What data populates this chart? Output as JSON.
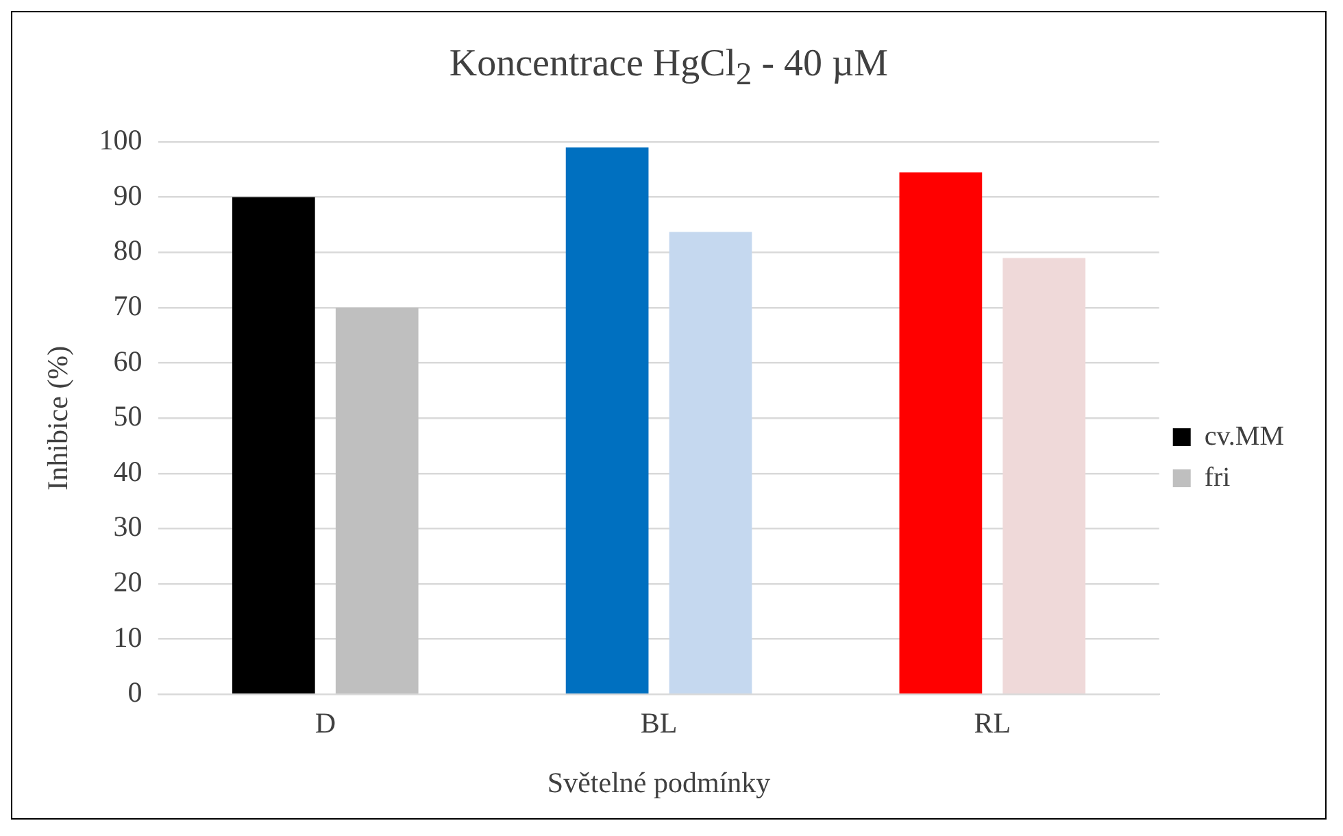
{
  "chart_data": {
    "type": "bar",
    "title": "Koncentrace HgCl$_{2}$ - 40 µM",
    "xlabel": "Světelné podmínky",
    "ylabel": "Inhibice (%)",
    "categories": [
      "D",
      "BL",
      "RL"
    ],
    "series": [
      {
        "name": "cv.MM",
        "color": "#000000",
        "colors": [
          "#000000",
          "#0070c0",
          "#ff0000"
        ],
        "values": [
          90,
          99,
          94.5
        ]
      },
      {
        "name": "fri",
        "color": "#bfbfbf",
        "colors": [
          "#bfbfbf",
          "#c5d8ef",
          "#efd9d9"
        ],
        "values": [
          70,
          83.7,
          79
        ]
      }
    ],
    "ylim": [
      0,
      100
    ],
    "yticks": [
      0,
      10,
      20,
      30,
      40,
      50,
      60,
      70,
      80,
      90,
      100
    ],
    "grid": "y",
    "legend": "right"
  }
}
